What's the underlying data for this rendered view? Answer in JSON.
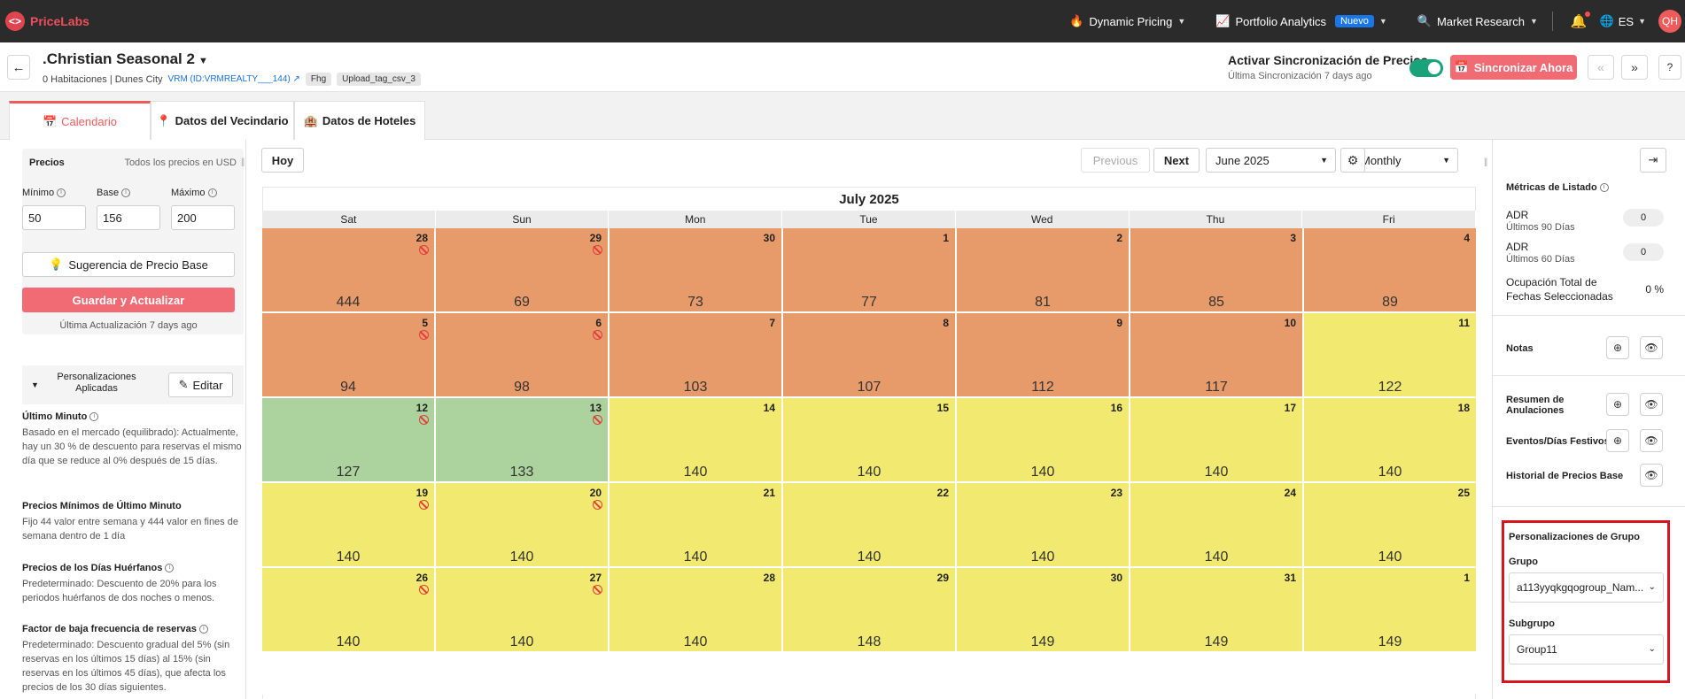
{
  "nav": {
    "brand": "PriceLabs",
    "dynamic_pricing": "Dynamic Pricing",
    "portfolio_analytics": "Portfolio Analytics",
    "new_badge": "Nuevo",
    "market_research": "Market Research",
    "language": "ES",
    "avatar": "QH"
  },
  "listing": {
    "title": ".Christian Seasonal 2",
    "sub": "0 Habitaciones | Dunes City",
    "vrm": "VRM (ID:VRMREALTY___144)",
    "tags": [
      "Fhg",
      "Upload_tag_csv_3"
    ]
  },
  "sync": {
    "title": "Activar Sincronización de Precios",
    "last": "Última Sincronización 7 days ago",
    "button": "Sincronizar Ahora"
  },
  "tabs": [
    "Calendario",
    "Datos del Vecindario",
    "Datos de Hoteles"
  ],
  "prices": {
    "heading": "Precios",
    "currency_note": "Todos los precios en USD",
    "min_label": "Mínimo",
    "base_label": "Base",
    "max_label": "Máximo",
    "min": "50",
    "base": "156",
    "max": "200",
    "suggestion": "Sugerencia de Precio Base",
    "save": "Guardar y Actualizar",
    "last_update": "Última Actualización 7 days ago"
  },
  "customizations": {
    "title": "Personalizaciones Aplicadas",
    "edit": "Editar",
    "rules": [
      {
        "title": "Último Minuto",
        "text": "Basado en el mercado (equilibrado): Actualmente, hay un 30 % de descuento para reservas el mismo día que se reduce al 0% después de 15 días."
      },
      {
        "title": "Precios Mínimos de Último Minuto",
        "text": "Fijo 44 valor entre semana y 444 valor en fines de semana dentro de 1 día"
      },
      {
        "title": "Precios de los Días Huérfanos",
        "text": "Predeterminado: Descuento de 20% para los periodos huérfanos de dos noches o menos."
      },
      {
        "title": "Factor de baja frecuencia de reservas",
        "text": "Predeterminado: Descuento gradual del 5% (sin reservas en los últimos 15 días) al 15% (sin reservas en los últimos 45 días), que afecta los precios de los 30 días siguientes."
      }
    ]
  },
  "toolbar": {
    "today": "Hoy",
    "previous": "Previous",
    "next": "Next",
    "month_select": "June 2025",
    "view_select": "Monthly"
  },
  "calendar": {
    "month": "July 2025",
    "weekdays": [
      "Sat",
      "Sun",
      "Mon",
      "Tue",
      "Wed",
      "Thu",
      "Fri"
    ],
    "colors": {
      "orange": "#e89b6a",
      "yellow": "#f2ea70",
      "green": "#acd39e"
    },
    "days": [
      {
        "d": "28",
        "p": "444",
        "c": "orange",
        "nb": true
      },
      {
        "d": "29",
        "p": "69",
        "c": "orange",
        "nb": true
      },
      {
        "d": "30",
        "p": "73",
        "c": "orange",
        "nb": false
      },
      {
        "d": "1",
        "p": "77",
        "c": "orange",
        "nb": false
      },
      {
        "d": "2",
        "p": "81",
        "c": "orange",
        "nb": false
      },
      {
        "d": "3",
        "p": "85",
        "c": "orange",
        "nb": false
      },
      {
        "d": "4",
        "p": "89",
        "c": "orange",
        "nb": false
      },
      {
        "d": "5",
        "p": "94",
        "c": "orange",
        "nb": true
      },
      {
        "d": "6",
        "p": "98",
        "c": "orange",
        "nb": true
      },
      {
        "d": "7",
        "p": "103",
        "c": "orange",
        "nb": false
      },
      {
        "d": "8",
        "p": "107",
        "c": "orange",
        "nb": false
      },
      {
        "d": "9",
        "p": "112",
        "c": "orange",
        "nb": false
      },
      {
        "d": "10",
        "p": "117",
        "c": "orange",
        "nb": false
      },
      {
        "d": "11",
        "p": "122",
        "c": "yellow",
        "nb": false
      },
      {
        "d": "12",
        "p": "127",
        "c": "green",
        "nb": true
      },
      {
        "d": "13",
        "p": "133",
        "c": "green",
        "nb": true
      },
      {
        "d": "14",
        "p": "140",
        "c": "yellow",
        "nb": false
      },
      {
        "d": "15",
        "p": "140",
        "c": "yellow",
        "nb": false
      },
      {
        "d": "16",
        "p": "140",
        "c": "yellow",
        "nb": false
      },
      {
        "d": "17",
        "p": "140",
        "c": "yellow",
        "nb": false
      },
      {
        "d": "18",
        "p": "140",
        "c": "yellow",
        "nb": false
      },
      {
        "d": "19",
        "p": "140",
        "c": "yellow",
        "nb": true
      },
      {
        "d": "20",
        "p": "140",
        "c": "yellow",
        "nb": true
      },
      {
        "d": "21",
        "p": "140",
        "c": "yellow",
        "nb": false
      },
      {
        "d": "22",
        "p": "140",
        "c": "yellow",
        "nb": false
      },
      {
        "d": "23",
        "p": "140",
        "c": "yellow",
        "nb": false
      },
      {
        "d": "24",
        "p": "140",
        "c": "yellow",
        "nb": false
      },
      {
        "d": "25",
        "p": "140",
        "c": "yellow",
        "nb": false
      },
      {
        "d": "26",
        "p": "140",
        "c": "yellow",
        "nb": true
      },
      {
        "d": "27",
        "p": "140",
        "c": "yellow",
        "nb": true
      },
      {
        "d": "28",
        "p": "140",
        "c": "yellow",
        "nb": false
      },
      {
        "d": "29",
        "p": "148",
        "c": "yellow",
        "nb": false
      },
      {
        "d": "30",
        "p": "149",
        "c": "yellow",
        "nb": false
      },
      {
        "d": "31",
        "p": "149",
        "c": "yellow",
        "nb": false
      },
      {
        "d": "1",
        "p": "149",
        "c": "yellow",
        "nb": false
      }
    ]
  },
  "metrics": {
    "title": "Métricas de Listado",
    "adr": "ADR",
    "adr90_sub": "Últimos 90 Días",
    "adr90": "0",
    "adr60_sub": "Últimos 60 Días",
    "adr60": "0",
    "occupancy_label": "Ocupación Total de Fechas Seleccionadas",
    "occupancy": "0 %",
    "notes": "Notas",
    "cancellations": "Resumen de Anulaciones",
    "events": "Eventos/Días Festivos",
    "base_history": "Historial de Precios Base"
  },
  "group": {
    "title": "Personalizaciones de Grupo",
    "group_label": "Grupo",
    "group_value": "a113yyqkgqogroup_Nam...",
    "subgroup_label": "Subgrupo",
    "subgroup_value": "Group11"
  }
}
